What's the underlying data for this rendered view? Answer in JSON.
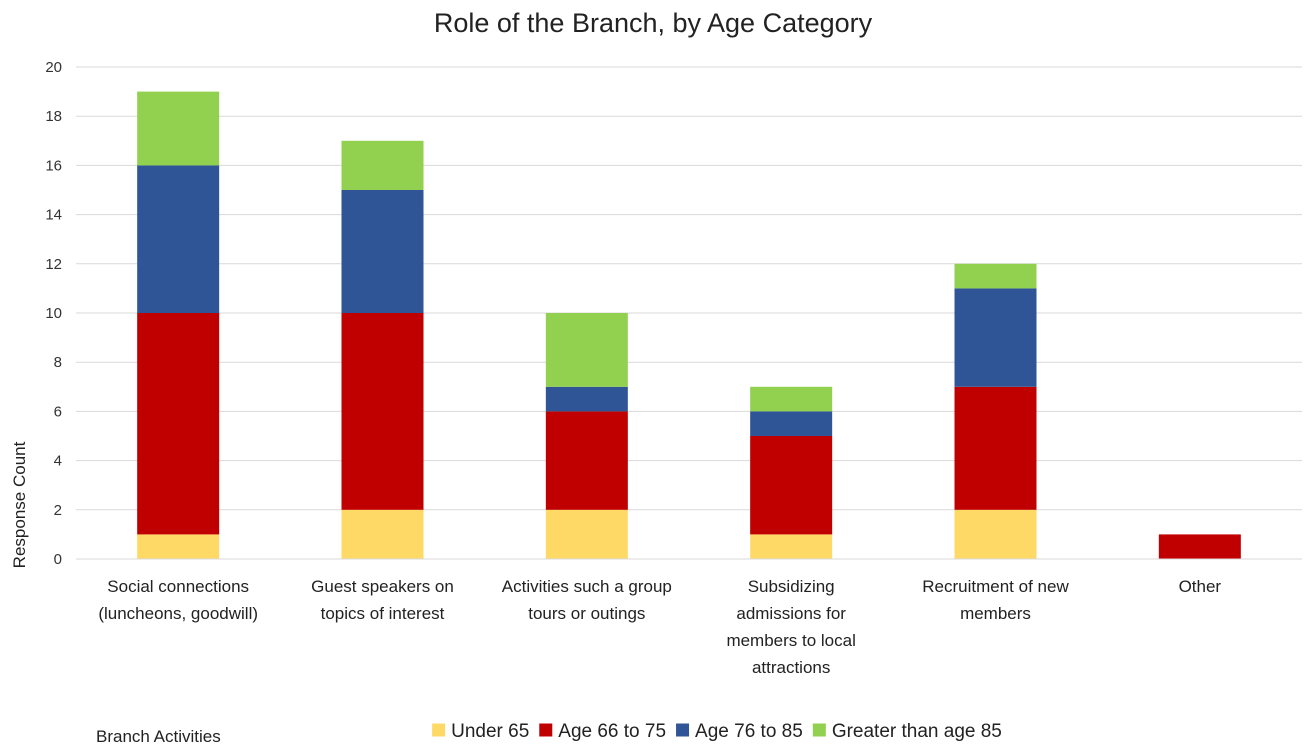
{
  "chart_data": {
    "type": "bar",
    "stacked": true,
    "title": "Role of the Branch, by Age Category",
    "xlabel": "Branch Activities",
    "ylabel": "Response Count",
    "ylim": [
      0,
      20
    ],
    "yticks": [
      0,
      2,
      4,
      6,
      8,
      10,
      12,
      14,
      16,
      18,
      20
    ],
    "grid": true,
    "legend_position": "bottom",
    "categories": [
      [
        "Social connections",
        "(luncheons, goodwill)"
      ],
      [
        "Guest speakers on",
        "topics of interest"
      ],
      [
        "Activities such a group",
        "tours or outings"
      ],
      [
        "Subsidizing",
        "admissions for",
        "members to local",
        "attractions"
      ],
      [
        "Recruitment of new",
        "members"
      ],
      [
        "Other"
      ]
    ],
    "series": [
      {
        "name": "Under 65",
        "color": "#FFD966",
        "values": [
          1,
          2,
          2,
          1,
          2,
          0
        ]
      },
      {
        "name": "Age 66 to 75",
        "color": "#C00000",
        "values": [
          9,
          8,
          4,
          4,
          5,
          1
        ]
      },
      {
        "name": "Age 76 to 85",
        "color": "#2F5597",
        "values": [
          6,
          5,
          1,
          1,
          4,
          0
        ]
      },
      {
        "name": "Greater than age 85",
        "color": "#92D050",
        "values": [
          3,
          2,
          3,
          1,
          1,
          0
        ]
      }
    ]
  }
}
